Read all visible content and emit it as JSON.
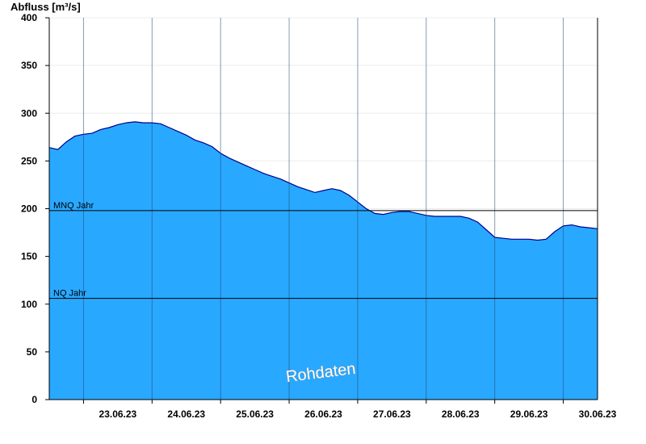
{
  "chart_data": {
    "type": "area",
    "ylabel": "Abfluss [m³/s]",
    "xlabel": "",
    "ylim": [
      0,
      400
    ],
    "yticks": [
      0,
      50,
      100,
      150,
      200,
      250,
      300,
      350,
      400
    ],
    "xlim": [
      "2023-06-22T12:00",
      "2023-06-30T12:00"
    ],
    "day_labels": [
      "23.06.23",
      "24.06.23",
      "25.06.23",
      "26.06.23",
      "27.06.23",
      "28.06.23",
      "29.06.23",
      "30.06.23"
    ],
    "grid": true,
    "fill_color": "#29a8ff",
    "line_color": "#00008b",
    "reference_lines": [
      {
        "label": "MNQ Jahr",
        "value": 198
      },
      {
        "label": "NQ Jahr",
        "value": 106
      }
    ],
    "watermark": "Rohdaten",
    "series": [
      {
        "x": [
          "2023-06-22T12:00",
          "2023-06-22T15:00",
          "2023-06-22T18:00",
          "2023-06-22T21:00",
          "2023-06-23T00:00",
          "2023-06-23T03:00",
          "2023-06-23T06:00",
          "2023-06-23T09:00",
          "2023-06-23T12:00",
          "2023-06-23T15:00",
          "2023-06-23T18:00",
          "2023-06-23T21:00",
          "2023-06-24T00:00",
          "2023-06-24T03:00",
          "2023-06-24T06:00",
          "2023-06-24T09:00",
          "2023-06-24T12:00",
          "2023-06-24T15:00",
          "2023-06-24T18:00",
          "2023-06-24T21:00",
          "2023-06-25T00:00",
          "2023-06-25T03:00",
          "2023-06-25T06:00",
          "2023-06-25T09:00",
          "2023-06-25T12:00",
          "2023-06-25T15:00",
          "2023-06-25T18:00",
          "2023-06-25T21:00",
          "2023-06-26T00:00",
          "2023-06-26T03:00",
          "2023-06-26T06:00",
          "2023-06-26T09:00",
          "2023-06-26T12:00",
          "2023-06-26T15:00",
          "2023-06-26T18:00",
          "2023-06-26T21:00",
          "2023-06-27T00:00",
          "2023-06-27T03:00",
          "2023-06-27T06:00",
          "2023-06-27T09:00",
          "2023-06-27T12:00",
          "2023-06-27T15:00",
          "2023-06-27T18:00",
          "2023-06-27T21:00",
          "2023-06-28T00:00",
          "2023-06-28T03:00",
          "2023-06-28T06:00",
          "2023-06-28T09:00",
          "2023-06-28T12:00",
          "2023-06-28T15:00",
          "2023-06-28T18:00",
          "2023-06-28T21:00",
          "2023-06-29T00:00",
          "2023-06-29T03:00",
          "2023-06-29T06:00",
          "2023-06-29T09:00",
          "2023-06-29T12:00",
          "2023-06-29T15:00",
          "2023-06-29T18:00",
          "2023-06-29T21:00",
          "2023-06-30T00:00",
          "2023-06-30T03:00",
          "2023-06-30T06:00",
          "2023-06-30T09:00",
          "2023-06-30T12:00"
        ],
        "y": [
          264,
          262,
          270,
          276,
          278,
          279,
          283,
          285,
          288,
          290,
          291,
          290,
          290,
          289,
          285,
          281,
          277,
          272,
          269,
          265,
          258,
          253,
          249,
          245,
          241,
          237,
          234,
          231,
          227,
          223,
          220,
          217,
          219,
          221,
          219,
          214,
          207,
          200,
          195,
          194,
          196,
          197,
          197,
          195,
          193,
          192,
          192,
          192,
          192,
          190,
          186,
          178,
          170,
          169,
          168,
          168,
          168,
          167,
          168,
          176,
          182,
          183,
          181,
          180,
          179
        ]
      }
    ]
  }
}
